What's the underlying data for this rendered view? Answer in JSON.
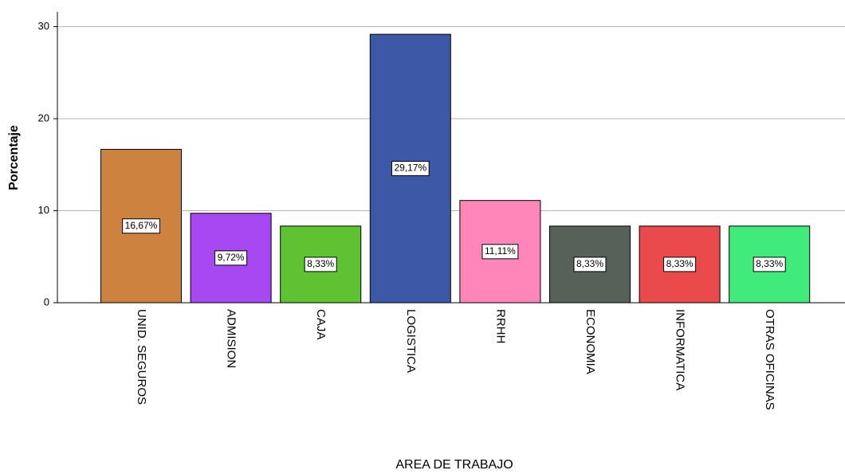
{
  "chart_data": {
    "type": "bar",
    "xlabel": "AREA DE TRABAJO",
    "ylabel": "Porcentaje",
    "categories": [
      "UNID. SEGUROS",
      "ADMISION",
      "CAJA",
      "LOGISTICA",
      "RRHH",
      "ECONOMIA",
      "INFORMATICA",
      "OTRAS OFICINAS"
    ],
    "values": [
      16.67,
      9.72,
      8.33,
      29.17,
      11.11,
      8.33,
      8.33,
      8.33
    ],
    "value_labels": [
      "16,67%",
      "9,72%",
      "8,33%",
      "29,17%",
      "11,11%",
      "8,33%",
      "8,33%",
      "8,33%"
    ],
    "colors": [
      "#cd8240",
      "#a748f2",
      "#5fc233",
      "#3d58a7",
      "#ff86b9",
      "#576059",
      "#eb4a4c",
      "#40ea7b"
    ],
    "ylim": [
      0,
      31.6
    ],
    "yticks": [
      0,
      10,
      20,
      30
    ],
    "grid": true
  }
}
